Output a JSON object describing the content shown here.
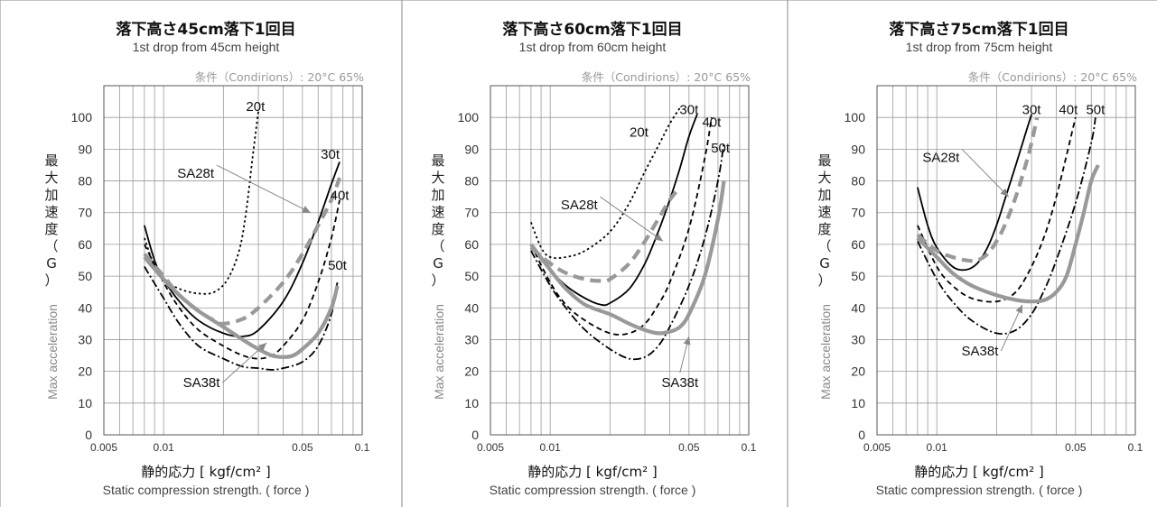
{
  "chart_data": [
    {
      "type": "line",
      "title": "落下高さ45cm落下1回目",
      "subtitle": "1st drop from 45cm height",
      "conditions": "条件（Condirions）: 20°C 65%",
      "ylabel_jp": "最大加速度（G）",
      "ylabel_en": "Max acceleration",
      "xlabel_jp": "静的応力 [ kgf/cm² ]",
      "xlabel_en": "Static compression strength. ( force )",
      "xscale": "log",
      "xlim": [
        0.005,
        0.1
      ],
      "ylim": [
        0,
        110
      ],
      "xticks": [
        0.005,
        0.01,
        0.05,
        0.1
      ],
      "xtick_labels": [
        "0.005",
        "0.01",
        "0.05",
        "0.1"
      ],
      "yticks": [
        0,
        10,
        20,
        30,
        40,
        50,
        60,
        70,
        80,
        90,
        100
      ],
      "ytick_labels": [
        "0",
        "10",
        "20",
        "30",
        "40",
        "50",
        "60",
        "70",
        "80",
        "90",
        "100"
      ],
      "grid": true,
      "series": [
        {
          "name": "20t",
          "style": "dotted",
          "color": "#000000",
          "x": [
            0.008,
            0.009,
            0.01,
            0.012,
            0.015,
            0.018,
            0.021,
            0.024,
            0.026,
            0.028,
            0.03
          ],
          "y": [
            62,
            53,
            49,
            46,
            44.5,
            45,
            49,
            58,
            70,
            87,
            102
          ]
        },
        {
          "name": "30t",
          "style": "solid",
          "color": "#000000",
          "x": [
            0.008,
            0.009,
            0.01,
            0.012,
            0.015,
            0.02,
            0.025,
            0.03,
            0.04,
            0.05,
            0.06,
            0.07,
            0.077
          ],
          "y": [
            66,
            55,
            49,
            42,
            36,
            32,
            31,
            33,
            42,
            54,
            67,
            79,
            86
          ]
        },
        {
          "name": "40t",
          "style": "dashed",
          "color": "#000000",
          "x": [
            0.008,
            0.01,
            0.012,
            0.015,
            0.02,
            0.025,
            0.03,
            0.035,
            0.04,
            0.05,
            0.06,
            0.07,
            0.077
          ],
          "y": [
            60,
            48,
            40,
            33,
            28,
            25,
            24,
            25,
            28,
            36,
            48,
            62,
            74
          ]
        },
        {
          "name": "50t",
          "style": "dashdot",
          "color": "#000000",
          "x": [
            0.008,
            0.01,
            0.012,
            0.015,
            0.02,
            0.025,
            0.03,
            0.035,
            0.04,
            0.05,
            0.06,
            0.07,
            0.075
          ],
          "y": [
            53,
            43,
            35,
            28,
            24,
            21.5,
            21,
            20.5,
            21,
            23,
            28,
            38,
            48
          ]
        },
        {
          "name": "SA28t",
          "style": "thick-dashed",
          "color": "#999999",
          "x": [
            0.008,
            0.01,
            0.012,
            0.015,
            0.018,
            0.02,
            0.025,
            0.03,
            0.04,
            0.05,
            0.06,
            0.07,
            0.077
          ],
          "y": [
            57,
            50,
            44,
            39,
            36,
            35,
            36.5,
            40,
            48,
            57,
            66,
            74,
            81
          ]
        },
        {
          "name": "SA38t",
          "style": "thick-solid",
          "color": "#999999",
          "x": [
            0.008,
            0.01,
            0.012,
            0.015,
            0.02,
            0.025,
            0.03,
            0.035,
            0.04,
            0.045,
            0.05,
            0.06,
            0.07,
            0.075
          ],
          "y": [
            56,
            49,
            44,
            39,
            34,
            30,
            27,
            25,
            24.5,
            25,
            27,
            32,
            40,
            47
          ]
        }
      ],
      "labels": [
        {
          "text": "20t",
          "x": 0.029,
          "y": 102
        },
        {
          "text": "30t",
          "x": 0.069,
          "y": 87
        },
        {
          "text": "40t",
          "x": 0.077,
          "y": 74
        },
        {
          "text": "50t",
          "x": 0.075,
          "y": 52
        },
        {
          "text": "SA28t",
          "x": 0.0145,
          "y": 81,
          "arrow_to_x": 0.055,
          "arrow_to_y": 70
        },
        {
          "text": "SA38t",
          "x": 0.0155,
          "y": 15,
          "arrow_to_x": 0.033,
          "arrow_to_y": 29
        }
      ]
    },
    {
      "type": "line",
      "title": "落下高さ60cm落下1回目",
      "subtitle": "1st drop from 60cm height",
      "conditions": "条件（Condirions）: 20°C 65%",
      "ylabel_jp": "最大加速度（G）",
      "ylabel_en": "Max acceleration",
      "xlabel_jp": "静的応力 [ kgf/cm² ]",
      "xlabel_en": "Static compression strength. ( force )",
      "xscale": "log",
      "xlim": [
        0.005,
        0.1
      ],
      "ylim": [
        0,
        110
      ],
      "xticks": [
        0.005,
        0.01,
        0.05,
        0.1
      ],
      "xtick_labels": [
        "0.005",
        "0.01",
        "0.05",
        "0.1"
      ],
      "yticks": [
        0,
        10,
        20,
        30,
        40,
        50,
        60,
        70,
        80,
        90,
        100
      ],
      "ytick_labels": [
        "0",
        "10",
        "20",
        "30",
        "40",
        "50",
        "60",
        "70",
        "80",
        "90",
        "100"
      ],
      "grid": true,
      "series": [
        {
          "name": "20t",
          "style": "dotted",
          "color": "#000000",
          "x": [
            0.008,
            0.009,
            0.01,
            0.012,
            0.015,
            0.02,
            0.025,
            0.03,
            0.035,
            0.04,
            0.045
          ],
          "y": [
            67,
            59,
            56,
            56,
            58,
            64,
            73,
            83,
            91,
            98,
            103
          ]
        },
        {
          "name": "30t",
          "style": "solid",
          "color": "#000000",
          "x": [
            0.008,
            0.01,
            0.012,
            0.015,
            0.018,
            0.02,
            0.025,
            0.03,
            0.035,
            0.04,
            0.045,
            0.05,
            0.055
          ],
          "y": [
            59,
            52,
            47,
            43,
            41,
            41.5,
            46,
            54,
            64,
            74,
            84,
            94,
            101
          ]
        },
        {
          "name": "40t",
          "style": "dashed",
          "color": "#000000",
          "x": [
            0.008,
            0.01,
            0.012,
            0.015,
            0.02,
            0.025,
            0.03,
            0.035,
            0.04,
            0.05,
            0.06,
            0.065
          ],
          "y": [
            60,
            48,
            41,
            36,
            32,
            32,
            35,
            41,
            48,
            65,
            87,
            100
          ]
        },
        {
          "name": "50t",
          "style": "dashdot",
          "color": "#000000",
          "x": [
            0.008,
            0.01,
            0.012,
            0.015,
            0.02,
            0.025,
            0.03,
            0.035,
            0.04,
            0.05,
            0.06,
            0.07,
            0.075
          ],
          "y": [
            58,
            47,
            40,
            33,
            27,
            24,
            24.5,
            28,
            34,
            47,
            62,
            80,
            92
          ]
        },
        {
          "name": "SA28t",
          "style": "thick-dashed",
          "color": "#999999",
          "x": [
            0.008,
            0.01,
            0.012,
            0.015,
            0.018,
            0.02,
            0.025,
            0.03,
            0.035,
            0.04,
            0.045
          ],
          "y": [
            59,
            54,
            51,
            49,
            48.5,
            49,
            54,
            61,
            68,
            74,
            78
          ]
        },
        {
          "name": "SA38t",
          "style": "thick-solid",
          "color": "#999999",
          "x": [
            0.008,
            0.01,
            0.012,
            0.015,
            0.02,
            0.025,
            0.03,
            0.035,
            0.04,
            0.045,
            0.05,
            0.06,
            0.07,
            0.075
          ],
          "y": [
            60,
            52,
            46,
            41,
            38,
            35,
            33,
            32,
            32.5,
            34,
            38,
            50,
            68,
            80
          ]
        }
      ],
      "labels": [
        {
          "text": "20t",
          "x": 0.028,
          "y": 94
        },
        {
          "text": "30t",
          "x": 0.05,
          "y": 101
        },
        {
          "text": "40t",
          "x": 0.065,
          "y": 97
        },
        {
          "text": "50t",
          "x": 0.072,
          "y": 89
        },
        {
          "text": "SA28t",
          "x": 0.014,
          "y": 71,
          "arrow_to_x": 0.037,
          "arrow_to_y": 61
        },
        {
          "text": "SA38t",
          "x": 0.045,
          "y": 15,
          "arrow_to_x": 0.05,
          "arrow_to_y": 31
        }
      ]
    },
    {
      "type": "line",
      "title": "落下高さ75cm落下1回目",
      "subtitle": "1st drop from 75cm height",
      "conditions": "条件（Condirions）: 20°C 65%",
      "ylabel_jp": "最大加速度（G）",
      "ylabel_en": "Max acceleration",
      "xlabel_jp": "静的応力 [ kgf/cm² ]",
      "xlabel_en": "Static compression strength. ( force )",
      "xscale": "log",
      "xlim": [
        0.005,
        0.1
      ],
      "ylim": [
        0,
        110
      ],
      "xticks": [
        0.005,
        0.01,
        0.05,
        0.1
      ],
      "xtick_labels": [
        "0.005",
        "0.01",
        "0.05",
        "0.1"
      ],
      "yticks": [
        0,
        10,
        20,
        30,
        40,
        50,
        60,
        70,
        80,
        90,
        100
      ],
      "ytick_labels": [
        "0",
        "10",
        "20",
        "30",
        "40",
        "50",
        "60",
        "70",
        "80",
        "90",
        "100"
      ],
      "grid": true,
      "series": [
        {
          "name": "30t",
          "style": "solid",
          "color": "#000000",
          "x": [
            0.008,
            0.009,
            0.01,
            0.012,
            0.014,
            0.016,
            0.018,
            0.02,
            0.022,
            0.025,
            0.028,
            0.03
          ],
          "y": [
            78,
            66,
            59,
            53,
            52,
            54,
            59,
            66,
            74,
            85,
            95,
            101
          ]
        },
        {
          "name": "40t",
          "style": "dashed",
          "color": "#000000",
          "x": [
            0.008,
            0.01,
            0.012,
            0.015,
            0.02,
            0.025,
            0.03,
            0.035,
            0.04,
            0.045,
            0.05
          ],
          "y": [
            66,
            53,
            47,
            43,
            42,
            45,
            53,
            63,
            75,
            88,
            100
          ]
        },
        {
          "name": "50t",
          "style": "dashdot",
          "color": "#000000",
          "x": [
            0.008,
            0.01,
            0.012,
            0.015,
            0.02,
            0.025,
            0.03,
            0.035,
            0.04,
            0.05,
            0.06,
            0.063
          ],
          "y": [
            61,
            49,
            42,
            36,
            32,
            33,
            38,
            46,
            55,
            73,
            92,
            100
          ]
        },
        {
          "name": "SA28t",
          "style": "thick-dashed",
          "color": "#999999",
          "x": [
            0.008,
            0.01,
            0.012,
            0.014,
            0.016,
            0.018,
            0.02,
            0.022,
            0.025,
            0.028,
            0.03,
            0.032
          ],
          "y": [
            63,
            58,
            56,
            55,
            55,
            57,
            61,
            66,
            75,
            85,
            92,
            100
          ]
        },
        {
          "name": "SA38t",
          "style": "thick-solid",
          "color": "#999999",
          "x": [
            0.008,
            0.01,
            0.012,
            0.015,
            0.02,
            0.025,
            0.03,
            0.035,
            0.04,
            0.045,
            0.05,
            0.055,
            0.06,
            0.065
          ],
          "y": [
            62,
            56,
            51,
            47,
            44,
            42.5,
            42,
            42.5,
            45,
            50,
            60,
            70,
            80,
            85
          ]
        }
      ],
      "labels": [
        {
          "text": "30t",
          "x": 0.03,
          "y": 101
        },
        {
          "text": "40t",
          "x": 0.046,
          "y": 101
        },
        {
          "text": "50t",
          "x": 0.063,
          "y": 101
        },
        {
          "text": "SA28t",
          "x": 0.0105,
          "y": 86,
          "arrow_to_x": 0.023,
          "arrow_to_y": 75
        },
        {
          "text": "SA38t",
          "x": 0.0165,
          "y": 25,
          "arrow_to_x": 0.027,
          "arrow_to_y": 41
        }
      ]
    }
  ]
}
